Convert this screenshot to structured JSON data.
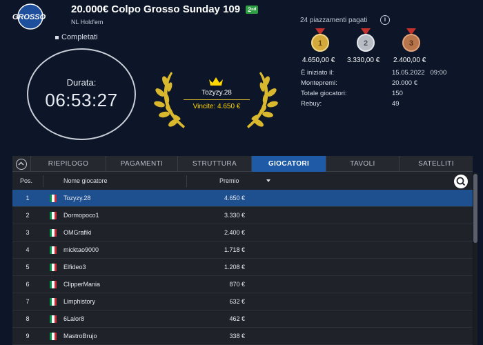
{
  "header": {
    "logo_text": "GROSSO",
    "title": "20.000€ Colpo Grosso Sunday 109",
    "badge": "2ⁿᵈ",
    "subtitle": "NL Hold'em",
    "status": "Completati"
  },
  "clock": {
    "label": "Durata:",
    "value": "06:53:27"
  },
  "winner": {
    "name": "Tozyzy.28",
    "prize": "Vincite: 4.650 €"
  },
  "payouts": {
    "label": "24 piazzamenti pagati",
    "medals": [
      {
        "rank": "1",
        "amount": "4.650,00 €",
        "color": "#d4a93c"
      },
      {
        "rank": "2",
        "amount": "3.330,00 €",
        "color": "#b8bcc4"
      },
      {
        "rank": "3",
        "amount": "2.400,00 €",
        "color": "#b8744a"
      }
    ]
  },
  "info": [
    {
      "label": "È iniziato il:",
      "value": "15.05.2022   09:00"
    },
    {
      "label": "Montepremi:",
      "value": "20.000 €"
    },
    {
      "label": "Totale giocatori:",
      "value": "150"
    },
    {
      "label": "Rebuy:",
      "value": "49"
    }
  ],
  "tabs": [
    "RIEPILOGO",
    "PAGAMENTI",
    "STRUTTURA",
    "GIOCATORI",
    "TAVOLI",
    "SATELLITI"
  ],
  "active_tab": "GIOCATORI",
  "table": {
    "headers": {
      "pos": "Pos.",
      "name": "Nome giocatore",
      "prize": "Premio"
    },
    "rows": [
      {
        "pos": "1",
        "name": "Tozyzy.28",
        "prize": "4.650 €"
      },
      {
        "pos": "2",
        "name": "Dormopoco1",
        "prize": "3.330 €"
      },
      {
        "pos": "3",
        "name": "OMGrafiki",
        "prize": "2.400 €"
      },
      {
        "pos": "4",
        "name": "micktao9000",
        "prize": "1.718 €"
      },
      {
        "pos": "5",
        "name": "Elfideo3",
        "prize": "1.208 €"
      },
      {
        "pos": "6",
        "name": "ClipperMania",
        "prize": "870 €"
      },
      {
        "pos": "7",
        "name": "Limphistory",
        "prize": "632 €"
      },
      {
        "pos": "8",
        "name": "6Lalor8",
        "prize": "462 €"
      },
      {
        "pos": "9",
        "name": "MastroBrujo",
        "prize": "338 €"
      }
    ]
  },
  "colors": {
    "background": "#0d1628",
    "accent": "#1e5aa5",
    "gold": "#ffd700",
    "flag": [
      "#009246",
      "#ffffff",
      "#ce2b37"
    ]
  }
}
